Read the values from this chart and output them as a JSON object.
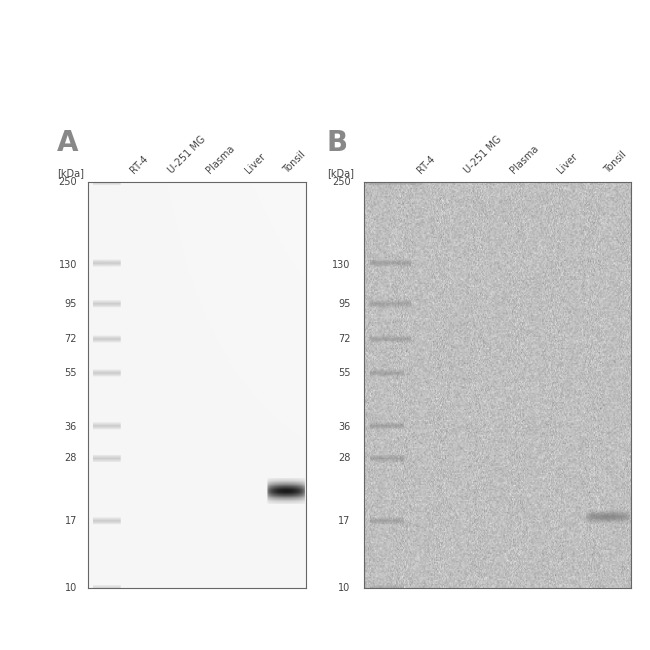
{
  "panel_a_label": "A",
  "panel_b_label": "B",
  "kda_label": "[kDa]",
  "sample_labels": [
    "RT-4",
    "U-251 MG",
    "Plasma",
    "Liver",
    "Tonsil"
  ],
  "mw_markers": [
    250,
    130,
    95,
    72,
    55,
    36,
    28,
    17,
    10
  ],
  "figure_bg": "#ffffff",
  "label_color": "#444444",
  "panel_letter_color": "#888888",
  "panel_letter_fontsize": 20,
  "axis_label_fontsize": 7,
  "sample_label_fontsize": 7,
  "marker_label_fontsize": 7
}
